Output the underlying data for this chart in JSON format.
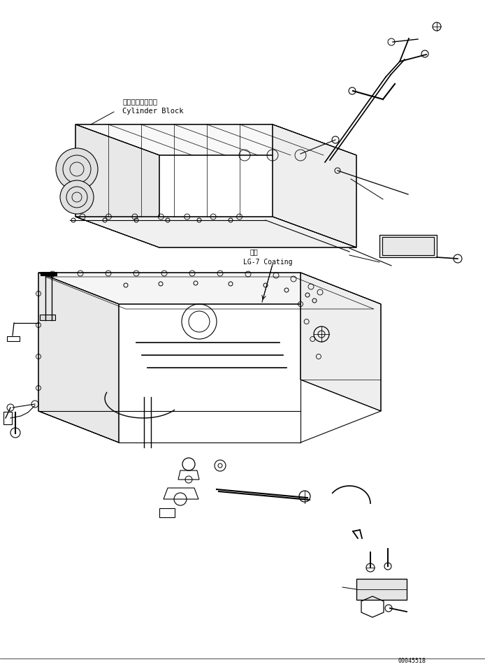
{
  "background_color": "#ffffff",
  "line_color": "#000000",
  "text_color": "#000000",
  "label_cylinder_block_jp": "シリンダブロック",
  "label_cylinder_block_en": "Cylinder Block",
  "label_coating_jp": "塗布",
  "label_coating_en": "LG-7 Coating",
  "part_number": "00045518",
  "figsize": [
    6.94,
    9.57
  ],
  "dpi": 100
}
